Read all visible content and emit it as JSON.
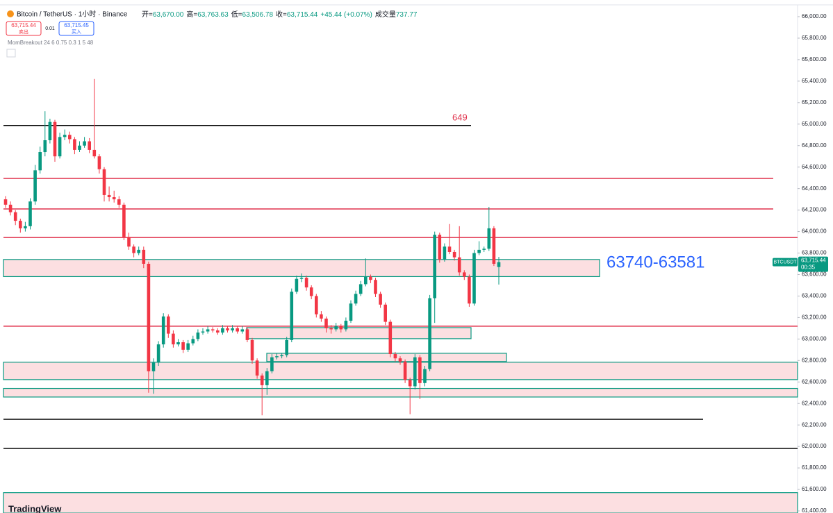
{
  "header": {
    "symbol": "Bitcoin / TetherUS · 1小时 · Binance",
    "open_label": "开=",
    "open": "63,670.00",
    "high_label": "高=",
    "high": "63,763.63",
    "low_label": "低=",
    "low": "63,506.78",
    "close_label": "收=",
    "close": "63,715.44",
    "change": "+45.44 (+0.07%)",
    "volume_label": "成交量",
    "volume": "737.77",
    "sell_price": "63,715.44",
    "sell_label": "卖出",
    "spread": "0.01",
    "buy_price": "63,715.45",
    "buy_label": "买入",
    "indicator": "MomBreakout 24 6 0.75 0.3 1 5 48"
  },
  "logo": "TradingView",
  "chart_data": {
    "type": "candlestick",
    "colors": {
      "up": "#089981",
      "down": "#f23645"
    },
    "ylim": [
      61400,
      66000
    ],
    "yticks": [
      {
        "value": 61400,
        "label": "61,400.00"
      },
      {
        "value": 61600,
        "label": "61,600.00"
      },
      {
        "value": 61800,
        "label": "61,800.00"
      },
      {
        "value": 62000,
        "label": "62,000.00"
      },
      {
        "value": 62200,
        "label": "62,200.00"
      },
      {
        "value": 62400,
        "label": "62,400.00"
      },
      {
        "value": 62600,
        "label": "62,600.00"
      },
      {
        "value": 62800,
        "label": "62,800.00"
      },
      {
        "value": 63000,
        "label": "63,000.00"
      },
      {
        "value": 63200,
        "label": "63,200.00"
      },
      {
        "value": 63400,
        "label": "63,400.00"
      },
      {
        "value": 63600,
        "label": "63,600.00"
      },
      {
        "value": 63800,
        "label": "63,800.00"
      },
      {
        "value": 64000,
        "label": "64,000.00"
      },
      {
        "value": 64200,
        "label": "64,200.00"
      },
      {
        "value": 64400,
        "label": "64,400.00"
      },
      {
        "value": 64600,
        "label": "64,600.00"
      },
      {
        "value": 64800,
        "label": "64,800.00"
      },
      {
        "value": 65000,
        "label": "65,000.00"
      },
      {
        "value": 65200,
        "label": "65,200.00"
      },
      {
        "value": 65400,
        "label": "65,400.00"
      },
      {
        "value": 65600,
        "label": "65,600.00"
      },
      {
        "value": 65800,
        "label": "65,800.00"
      },
      {
        "value": 66000,
        "label": "66,000.00"
      }
    ],
    "ohlc": [
      [
        64300,
        64330,
        64220,
        64250
      ],
      [
        64250,
        64280,
        64150,
        64180
      ],
      [
        64180,
        64200,
        64060,
        64100
      ],
      [
        64100,
        64120,
        63990,
        64030
      ],
      [
        64030,
        64090,
        64000,
        64050
      ],
      [
        64050,
        64310,
        64020,
        64280
      ],
      [
        64280,
        64620,
        64250,
        64570
      ],
      [
        64570,
        64790,
        64540,
        64740
      ],
      [
        64740,
        65120,
        64700,
        64850
      ],
      [
        64850,
        65050,
        64820,
        65020
      ],
      [
        65020,
        65040,
        64650,
        64700
      ],
      [
        64700,
        64920,
        64680,
        64880
      ],
      [
        64880,
        64950,
        64850,
        64900
      ],
      [
        64900,
        64930,
        64820,
        64860
      ],
      [
        64860,
        64880,
        64720,
        64760
      ],
      [
        64760,
        64840,
        64740,
        64800
      ],
      [
        64800,
        64880,
        64780,
        64840
      ],
      [
        64840,
        64870,
        64730,
        64760
      ],
      [
        64760,
        65420,
        64680,
        64700
      ],
      [
        64700,
        64720,
        64540,
        64580
      ],
      [
        64580,
        64600,
        64280,
        64340
      ],
      [
        64340,
        64420,
        64280,
        64320
      ],
      [
        64320,
        64380,
        64270,
        64300
      ],
      [
        64300,
        64330,
        64220,
        64250
      ],
      [
        64250,
        64270,
        63920,
        63950
      ],
      [
        63950,
        63990,
        63830,
        63860
      ],
      [
        63860,
        63880,
        63760,
        63800
      ],
      [
        63800,
        63860,
        63780,
        63830
      ],
      [
        63830,
        63860,
        63660,
        63700
      ],
      [
        63700,
        63720,
        62500,
        62700
      ],
      [
        62700,
        62820,
        62490,
        62780
      ],
      [
        62780,
        62980,
        62750,
        62950
      ],
      [
        62950,
        63240,
        62920,
        63210
      ],
      [
        63210,
        63230,
        63010,
        63050
      ],
      [
        63050,
        63080,
        62920,
        62950
      ],
      [
        62950,
        63000,
        62930,
        62970
      ],
      [
        62970,
        62990,
        62870,
        62900
      ],
      [
        62900,
        62990,
        62880,
        62960
      ],
      [
        62960,
        63030,
        62940,
        63000
      ],
      [
        63000,
        63090,
        62980,
        63060
      ],
      [
        63060,
        63100,
        63040,
        63070
      ],
      [
        63070,
        63120,
        63050,
        63090
      ],
      [
        63090,
        63110,
        63060,
        63080
      ],
      [
        63080,
        63100,
        63040,
        63060
      ],
      [
        63060,
        63130,
        63040,
        63100
      ],
      [
        63100,
        63120,
        63060,
        63080
      ],
      [
        63080,
        63130,
        63060,
        63100
      ],
      [
        63100,
        63120,
        63050,
        63070
      ],
      [
        63070,
        63120,
        63050,
        63090
      ],
      [
        63090,
        63110,
        62970,
        62990
      ],
      [
        62990,
        63010,
        62770,
        62800
      ],
      [
        62800,
        62820,
        62630,
        62660
      ],
      [
        62660,
        62680,
        62290,
        62570
      ],
      [
        62570,
        62730,
        62480,
        62700
      ],
      [
        62700,
        62860,
        62680,
        62830
      ],
      [
        62830,
        62870,
        62810,
        62840
      ],
      [
        62840,
        62870,
        62820,
        62850
      ],
      [
        62850,
        63020,
        62830,
        62990
      ],
      [
        62990,
        63470,
        62970,
        63440
      ],
      [
        63440,
        63590,
        63420,
        63560
      ],
      [
        63560,
        63610,
        63530,
        63570
      ],
      [
        63570,
        63590,
        63450,
        63480
      ],
      [
        63480,
        63500,
        63370,
        63400
      ],
      [
        63400,
        63420,
        63200,
        63230
      ],
      [
        63230,
        63260,
        63160,
        63190
      ],
      [
        63190,
        63210,
        63060,
        63100
      ],
      [
        63100,
        63130,
        63050,
        63090
      ],
      [
        63090,
        63150,
        63070,
        63120
      ],
      [
        63120,
        63140,
        63060,
        63090
      ],
      [
        63090,
        63200,
        63070,
        63170
      ],
      [
        63170,
        63360,
        63150,
        63330
      ],
      [
        63330,
        63450,
        63310,
        63420
      ],
      [
        63420,
        63540,
        63400,
        63510
      ],
      [
        63510,
        63750,
        63490,
        63580
      ],
      [
        63580,
        63600,
        63520,
        63550
      ],
      [
        63550,
        63570,
        63390,
        63420
      ],
      [
        63420,
        63440,
        63290,
        63320
      ],
      [
        63320,
        63340,
        63130,
        63160
      ],
      [
        63160,
        63180,
        62830,
        62860
      ],
      [
        62860,
        62880,
        62790,
        62820
      ],
      [
        62820,
        62840,
        62760,
        62790
      ],
      [
        62790,
        62810,
        62590,
        62620
      ],
      [
        62620,
        62640,
        62300,
        62560
      ],
      [
        62560,
        62860,
        62530,
        62830
      ],
      [
        62830,
        62850,
        62440,
        62590
      ],
      [
        62590,
        62750,
        62560,
        62720
      ],
      [
        62720,
        63410,
        62700,
        63380
      ],
      [
        63380,
        64000,
        63150,
        63970
      ],
      [
        63970,
        63990,
        63710,
        63740
      ],
      [
        63740,
        63890,
        63720,
        63860
      ],
      [
        63860,
        64070,
        63790,
        63810
      ],
      [
        63810,
        63830,
        63730,
        63760
      ],
      [
        63760,
        64050,
        63590,
        63620
      ],
      [
        63620,
        63640,
        63550,
        63580
      ],
      [
        63580,
        63600,
        63300,
        63330
      ],
      [
        63330,
        63830,
        63310,
        63800
      ],
      [
        63800,
        63910,
        63780,
        63830
      ],
      [
        63830,
        63860,
        63810,
        63840
      ],
      [
        63840,
        64230,
        63820,
        64030
      ],
      [
        64030,
        64050,
        63680,
        63700
      ],
      [
        63670,
        63763.63,
        63506.78,
        63715.44
      ]
    ],
    "levels": [
      {
        "value": 64987,
        "color": "#000000"
      },
      {
        "value": 64495,
        "color": "#e0314b"
      },
      {
        "value": 64210,
        "color": "#e0314b"
      },
      {
        "value": 63945,
        "color": "#e0314b"
      },
      {
        "value": 63119,
        "color": "#e0314b"
      },
      {
        "value": 62253,
        "color": "#000000"
      },
      {
        "value": 61982,
        "color": "#000000"
      }
    ],
    "zones": [
      [
        63740,
        63581
      ],
      [
        63106,
        63003
      ],
      [
        62867,
        62790
      ],
      [
        62784,
        62622
      ],
      [
        62540,
        62460
      ],
      [
        61570,
        61380
      ]
    ],
    "annotations": [
      {
        "text": "649",
        "color": "#e0314b"
      },
      {
        "text": "63740-63581",
        "color": "#2962ff"
      }
    ],
    "last_price": {
      "tag": "BTCUSDT",
      "label": "63,715.44",
      "countdown": "00:35"
    }
  }
}
